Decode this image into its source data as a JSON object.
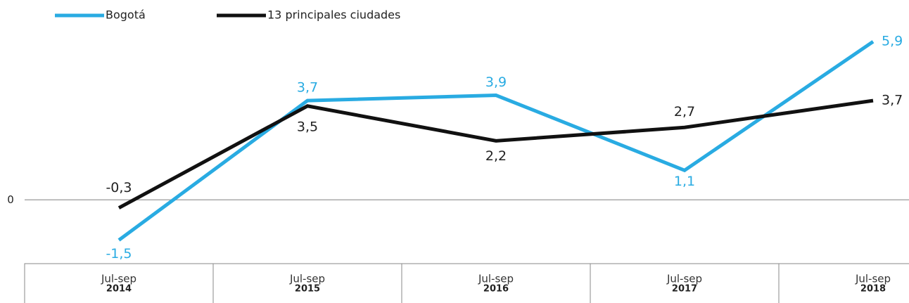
{
  "chart_data": {
    "type": "line",
    "categories": [
      [
        "Jul-sep",
        "2014"
      ],
      [
        "Jul-sep",
        "2015"
      ],
      [
        "Jul-sep",
        "2016"
      ],
      [
        "Jul-sep",
        "2017"
      ],
      [
        "Jul-sep",
        "2018"
      ]
    ],
    "series": [
      {
        "name": "Bogotá",
        "color": "#29abe2",
        "values": [
          -1.5,
          3.7,
          3.9,
          1.1,
          5.9
        ],
        "value_labels": [
          "-1,5",
          "3,7",
          "3,9",
          "1,1",
          "5,9"
        ]
      },
      {
        "name": "13 principales ciudades",
        "color": "#111111",
        "values": [
          -0.3,
          3.5,
          2.2,
          2.7,
          3.7
        ],
        "value_labels": [
          "-0,3",
          "3,5",
          "2,2",
          "2,7",
          "3,7"
        ]
      }
    ],
    "ylim": [
      -2.3,
      7.4
    ],
    "yticks": [
      0
    ],
    "legend": "top-left"
  }
}
